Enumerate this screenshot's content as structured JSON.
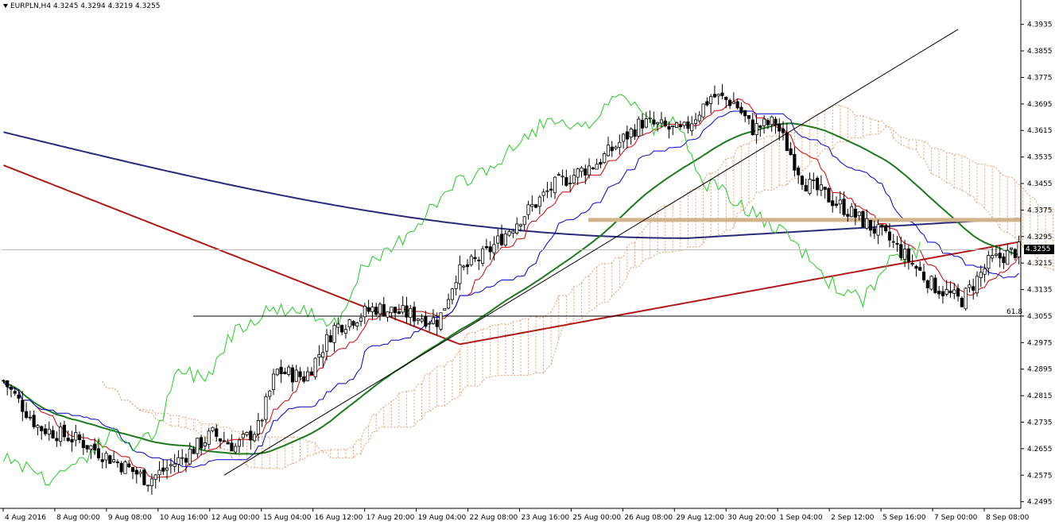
{
  "header": {
    "symbol": "EURPLN,H4",
    "ohlc": "4.3245 4.3294 4.3219 4.3255",
    "menu_icon": "triangle-down-icon"
  },
  "price_axis": {
    "labels": [
      "4.3935",
      "4.3855",
      "4.3775",
      "4.3695",
      "4.3615",
      "4.3535",
      "4.3455",
      "4.3375",
      "4.3295",
      "4.3215",
      "4.3135",
      "4.3055",
      "4.2975",
      "4.2895",
      "4.2815",
      "4.2735",
      "4.2655",
      "4.2575",
      "4.2495"
    ],
    "current_price": "4.3255"
  },
  "time_axis": {
    "labels": [
      "4 Aug 2016",
      "8 Aug 00:00",
      "9 Aug 08:00",
      "10 Aug 16:00",
      "12 Aug 00:00",
      "15 Aug 04:00",
      "16 Aug 12:00",
      "17 Aug 20:00",
      "19 Aug 04:00",
      "22 Aug 08:00",
      "23 Aug 16:00",
      "25 Aug 00:00",
      "26 Aug 08:00",
      "29 Aug 12:00",
      "30 Aug 20:00",
      "1 Sep 04:00",
      "2 Sep 12:00",
      "5 Sep 16:00",
      "7 Sep 00:00",
      "8 Sep 08:00"
    ]
  },
  "annotations": {
    "fib_label": "61.8",
    "fib_level": 4.3055,
    "resistance_level": 4.3345,
    "trendline": {
      "from_bar": 58,
      "from_price": 4.2575,
      "to_bar": 251,
      "to_price": 4.392
    }
  },
  "chart_data": {
    "type": "candlestick",
    "instrument": "EURPLN",
    "timeframe": "H4",
    "ylim": [
      4.2475,
      4.3975
    ],
    "num_bars": 268,
    "candles": [],
    "indicators": {
      "ma_green": {
        "color": "#1c7a1c"
      },
      "ma_red": {
        "color": "#b01818"
      },
      "ma_navy": {
        "color": "#2a2a7a"
      },
      "tenkan": {
        "color": "#d00000"
      },
      "kijun": {
        "color": "#0000cc"
      },
      "chikou": {
        "color": "#22cc22"
      },
      "kumo": {
        "color": "#e8a070"
      }
    },
    "colors": {
      "bull": "#ffffff",
      "bear": "#000000",
      "resistance": "#d2b48c",
      "grid": "#bbbbbb"
    }
  }
}
